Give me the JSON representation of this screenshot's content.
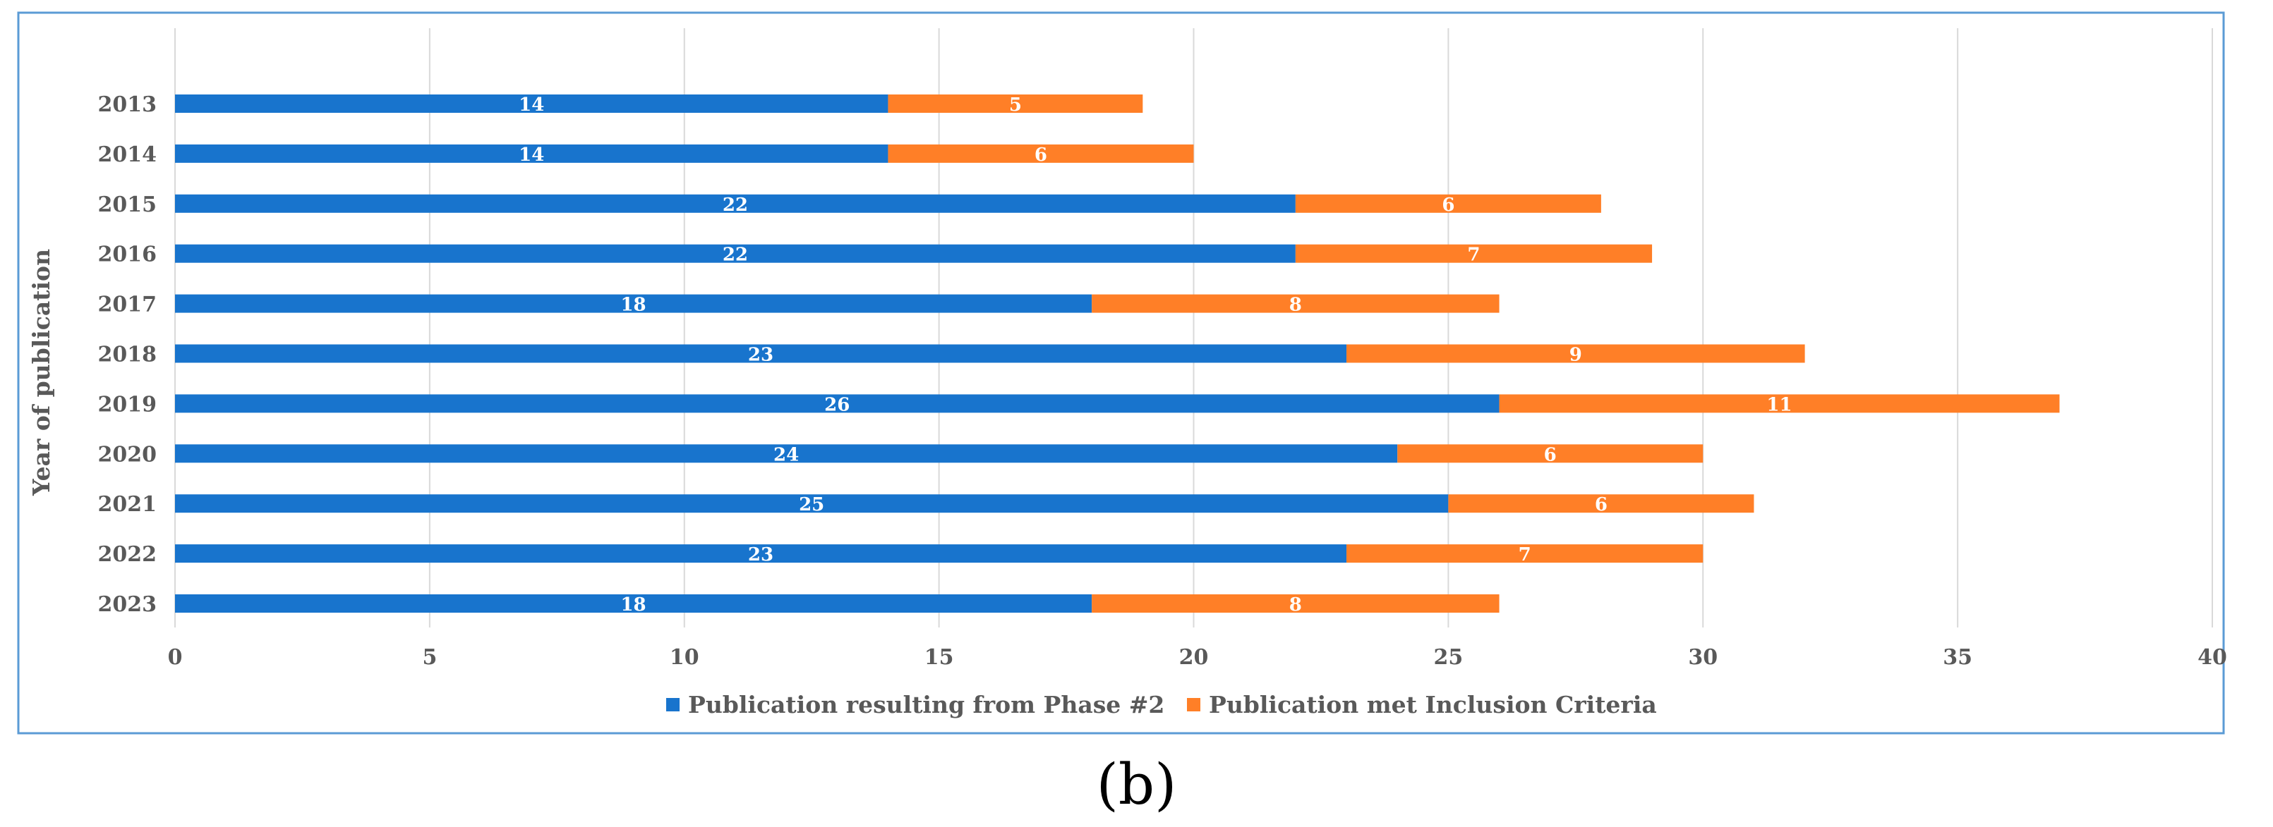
{
  "caption": "(b)",
  "colors": {
    "series1": "#1874CD",
    "series2": "#FF7F27",
    "grid": "#D9D9D9",
    "border": "#5B9BD5",
    "text": "#595959"
  },
  "chart_data": {
    "type": "bar",
    "orientation": "horizontal",
    "stacked": true,
    "categories": [
      "2013",
      "2014",
      "2015",
      "2016",
      "2017",
      "2018",
      "2019",
      "2020",
      "2021",
      "2022",
      "2023"
    ],
    "series": [
      {
        "name": "Publication resulting from Phase #2",
        "values": [
          14,
          14,
          22,
          22,
          18,
          23,
          26,
          24,
          25,
          23,
          18
        ]
      },
      {
        "name": "Publication met Inclusion Criteria",
        "values": [
          5,
          6,
          6,
          7,
          8,
          9,
          11,
          6,
          6,
          7,
          8
        ]
      }
    ],
    "xlim": [
      0,
      40
    ],
    "xticks": [
      0,
      5,
      10,
      15,
      20,
      25,
      30,
      35,
      40
    ],
    "ylabel": "Year of publication",
    "xlabel": "",
    "title": "",
    "grid": true,
    "legend": "bottom"
  }
}
